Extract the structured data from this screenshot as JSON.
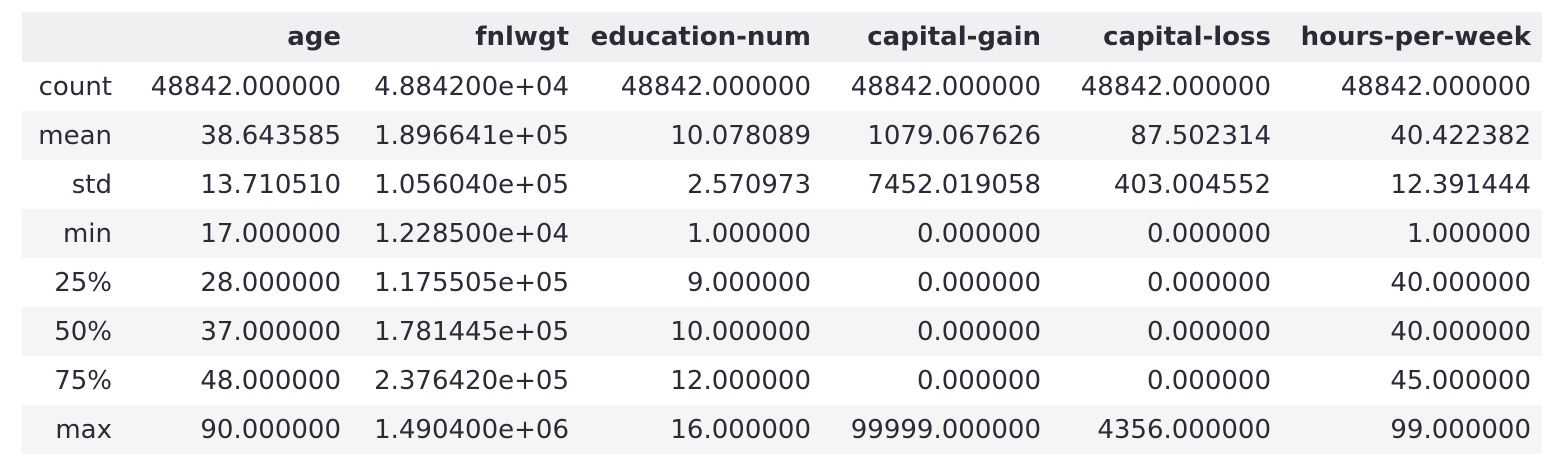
{
  "table": {
    "index_header": "",
    "columns": [
      "age",
      "fnlwgt",
      "education-num",
      "capital-gain",
      "capital-loss",
      "hours-per-week"
    ],
    "rows": [
      {
        "label": "count",
        "values": [
          "48842.000000",
          "4.884200e+04",
          "48842.000000",
          "48842.000000",
          "48842.000000",
          "48842.000000"
        ]
      },
      {
        "label": "mean",
        "values": [
          "38.643585",
          "1.896641e+05",
          "10.078089",
          "1079.067626",
          "87.502314",
          "40.422382"
        ]
      },
      {
        "label": "std",
        "values": [
          "13.710510",
          "1.056040e+05",
          "2.570973",
          "7452.019058",
          "403.004552",
          "12.391444"
        ]
      },
      {
        "label": "min",
        "values": [
          "17.000000",
          "1.228500e+04",
          "1.000000",
          "0.000000",
          "0.000000",
          "1.000000"
        ]
      },
      {
        "label": "25%",
        "values": [
          "28.000000",
          "1.175505e+05",
          "9.000000",
          "0.000000",
          "0.000000",
          "40.000000"
        ]
      },
      {
        "label": "50%",
        "values": [
          "37.000000",
          "1.781445e+05",
          "10.000000",
          "0.000000",
          "0.000000",
          "40.000000"
        ]
      },
      {
        "label": "75%",
        "values": [
          "48.000000",
          "2.376420e+05",
          "12.000000",
          "0.000000",
          "0.000000",
          "45.000000"
        ]
      },
      {
        "label": "max",
        "values": [
          "90.000000",
          "1.490400e+06",
          "16.000000",
          "99999.000000",
          "4356.000000",
          "99.000000"
        ]
      }
    ]
  }
}
